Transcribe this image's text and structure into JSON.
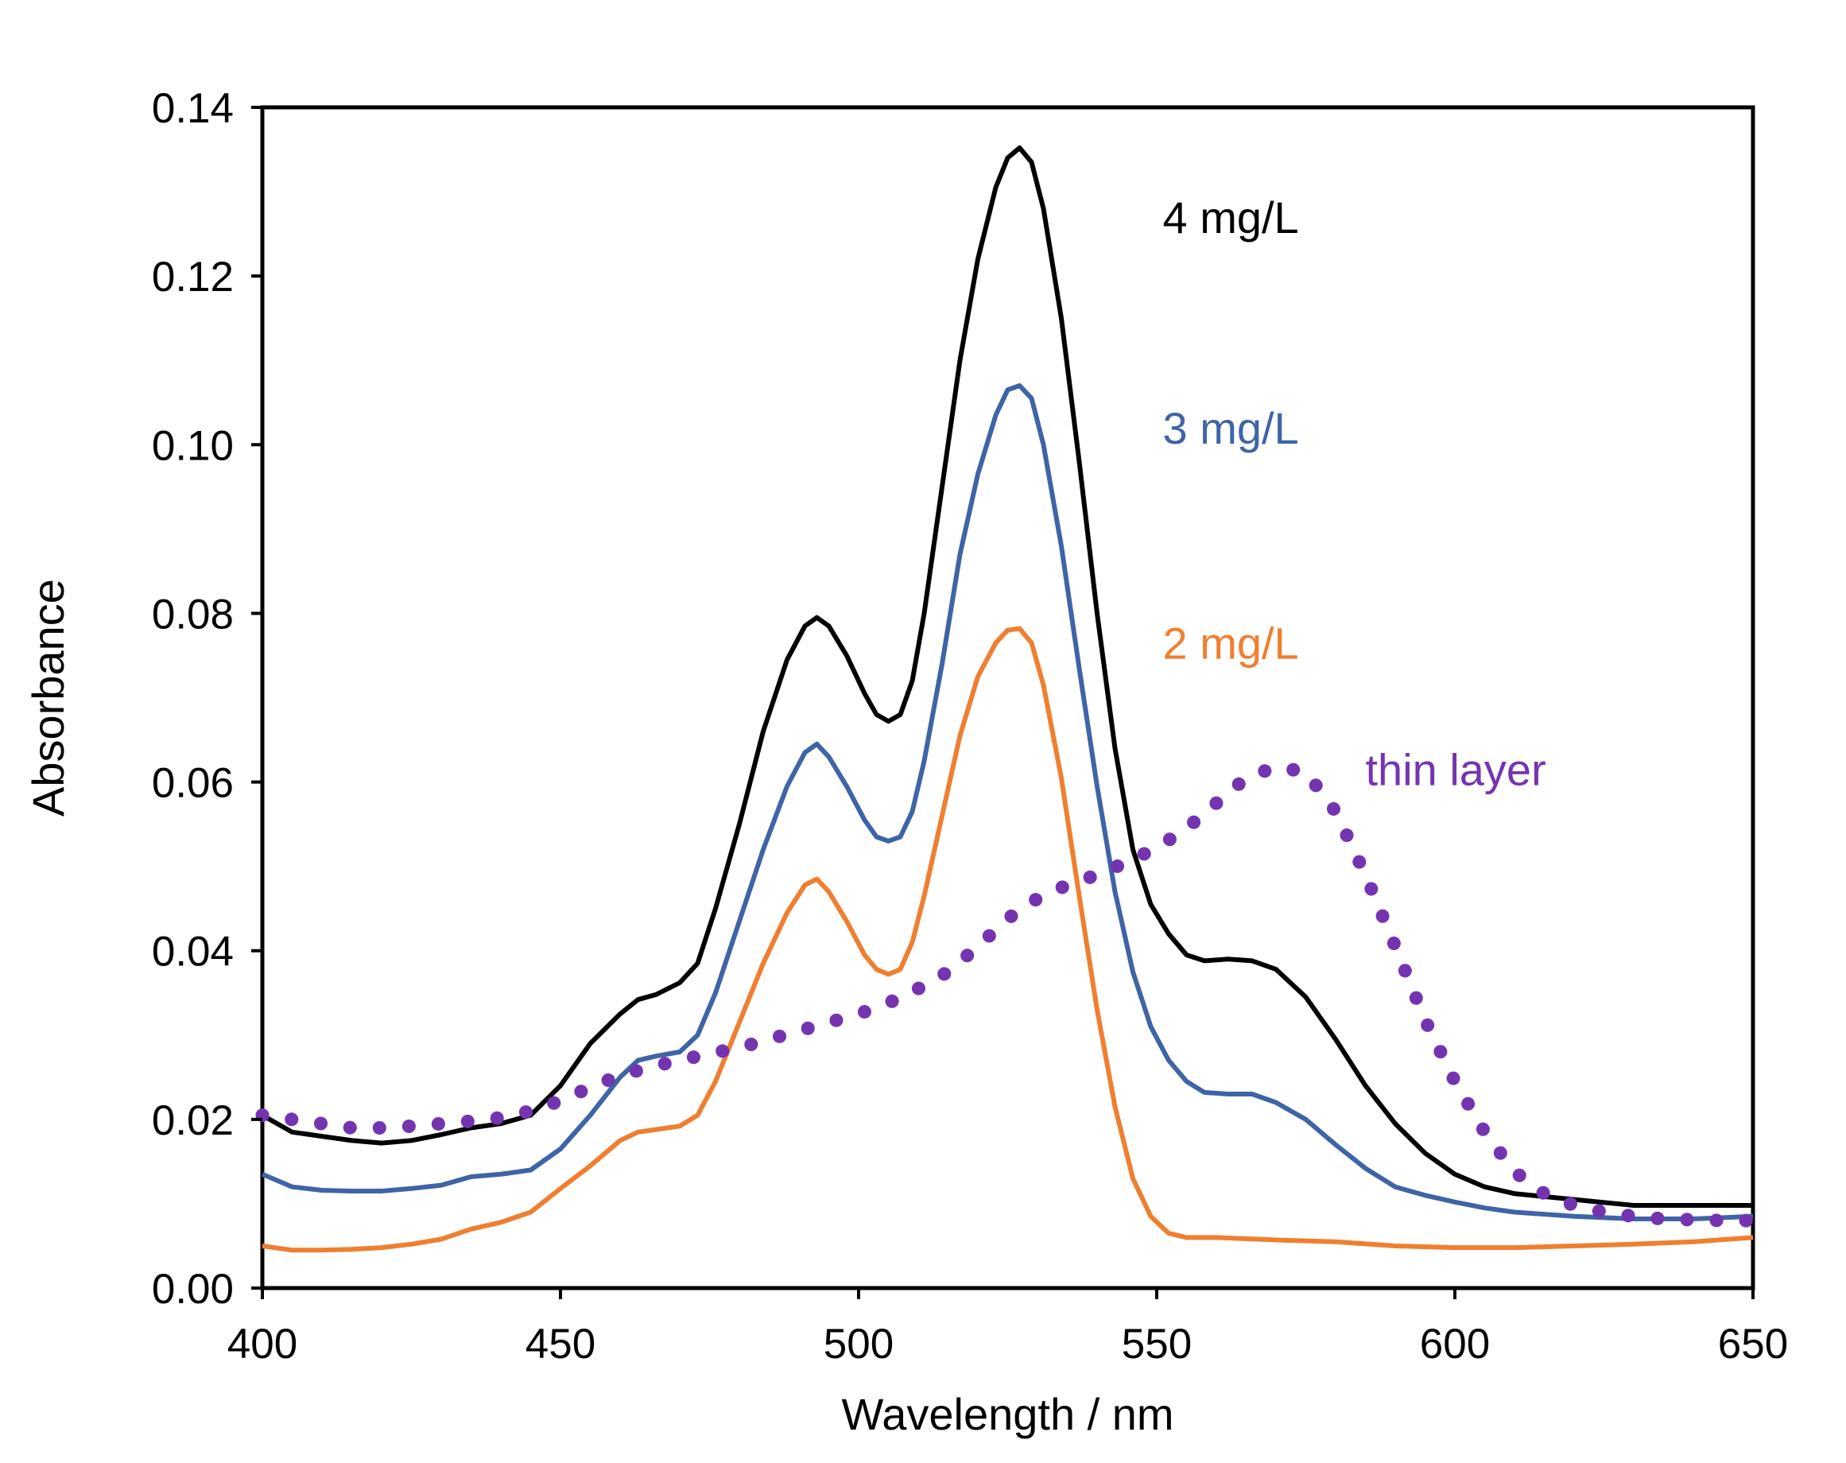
{
  "chart_data": {
    "type": "line",
    "title": "",
    "xlabel": "Wavelength / nm",
    "ylabel": "Absorbance",
    "xlim": [
      400,
      650
    ],
    "ylim": [
      0,
      0.14
    ],
    "grid": false,
    "legend": "inline labels",
    "xticks": [
      {
        "value": 400,
        "label": "400"
      },
      {
        "value": 450,
        "label": "450"
      },
      {
        "value": 500,
        "label": "500"
      },
      {
        "value": 550,
        "label": "550"
      },
      {
        "value": 600,
        "label": "600"
      },
      {
        "value": 650,
        "label": "650"
      }
    ],
    "yticks": [
      {
        "value": 0.0,
        "label": "0.00"
      },
      {
        "value": 0.02,
        "label": "0.02"
      },
      {
        "value": 0.04,
        "label": "0.04"
      },
      {
        "value": 0.06,
        "label": "0.06"
      },
      {
        "value": 0.08,
        "label": "0.08"
      },
      {
        "value": 0.1,
        "label": "0.10"
      },
      {
        "value": 0.12,
        "label": "0.12"
      },
      {
        "value": 0.14,
        "label": "0.14"
      }
    ],
    "series": [
      {
        "name": "4 mg/L",
        "color": "#000000",
        "style": "solid",
        "label_anchor": [
          551,
          0.127
        ],
        "points": [
          [
            400,
            0.0205
          ],
          [
            405,
            0.0185
          ],
          [
            410,
            0.018
          ],
          [
            415,
            0.0175
          ],
          [
            420,
            0.0172
          ],
          [
            425,
            0.0175
          ],
          [
            430,
            0.0182
          ],
          [
            435,
            0.019
          ],
          [
            440,
            0.0195
          ],
          [
            445,
            0.0205
          ],
          [
            450,
            0.024
          ],
          [
            455,
            0.029
          ],
          [
            460,
            0.0325
          ],
          [
            463,
            0.0342
          ],
          [
            466,
            0.0348
          ],
          [
            470,
            0.0362
          ],
          [
            473,
            0.0385
          ],
          [
            476,
            0.045
          ],
          [
            480,
            0.055
          ],
          [
            484,
            0.066
          ],
          [
            488,
            0.0745
          ],
          [
            491,
            0.0785
          ],
          [
            493,
            0.0795
          ],
          [
            495,
            0.0785
          ],
          [
            498,
            0.075
          ],
          [
            501,
            0.0705
          ],
          [
            503,
            0.068
          ],
          [
            505,
            0.0672
          ],
          [
            507,
            0.068
          ],
          [
            509,
            0.072
          ],
          [
            511,
            0.08
          ],
          [
            514,
            0.095
          ],
          [
            517,
            0.11
          ],
          [
            520,
            0.122
          ],
          [
            523,
            0.1305
          ],
          [
            525,
            0.134
          ],
          [
            527,
            0.1352
          ],
          [
            529,
            0.1335
          ],
          [
            531,
            0.128
          ],
          [
            534,
            0.115
          ],
          [
            537,
            0.098
          ],
          [
            540,
            0.08
          ],
          [
            543,
            0.064
          ],
          [
            546,
            0.052
          ],
          [
            549,
            0.0455
          ],
          [
            552,
            0.042
          ],
          [
            555,
            0.0395
          ],
          [
            558,
            0.0388
          ],
          [
            562,
            0.039
          ],
          [
            566,
            0.0388
          ],
          [
            570,
            0.0378
          ],
          [
            575,
            0.0345
          ],
          [
            580,
            0.0295
          ],
          [
            585,
            0.024
          ],
          [
            590,
            0.0195
          ],
          [
            595,
            0.016
          ],
          [
            600,
            0.0135
          ],
          [
            605,
            0.012
          ],
          [
            610,
            0.0112
          ],
          [
            620,
            0.0105
          ],
          [
            630,
            0.0098
          ],
          [
            640,
            0.0098
          ],
          [
            650,
            0.0098
          ]
        ]
      },
      {
        "name": "3 mg/L",
        "color": "#3f64a6",
        "style": "solid",
        "label_anchor": [
          551,
          0.102
        ],
        "points": [
          [
            400,
            0.0135
          ],
          [
            405,
            0.012
          ],
          [
            410,
            0.0116
          ],
          [
            415,
            0.0115
          ],
          [
            420,
            0.0115
          ],
          [
            425,
            0.0118
          ],
          [
            430,
            0.0122
          ],
          [
            435,
            0.0132
          ],
          [
            440,
            0.0135
          ],
          [
            445,
            0.014
          ],
          [
            450,
            0.0165
          ],
          [
            455,
            0.0205
          ],
          [
            460,
            0.025
          ],
          [
            463,
            0.027
          ],
          [
            466,
            0.0275
          ],
          [
            470,
            0.028
          ],
          [
            473,
            0.03
          ],
          [
            476,
            0.035
          ],
          [
            480,
            0.0435
          ],
          [
            484,
            0.052
          ],
          [
            488,
            0.0595
          ],
          [
            491,
            0.0635
          ],
          [
            493,
            0.0645
          ],
          [
            495,
            0.063
          ],
          [
            498,
            0.0595
          ],
          [
            501,
            0.0555
          ],
          [
            503,
            0.0535
          ],
          [
            505,
            0.053
          ],
          [
            507,
            0.0535
          ],
          [
            509,
            0.0565
          ],
          [
            511,
            0.0625
          ],
          [
            514,
            0.074
          ],
          [
            517,
            0.087
          ],
          [
            520,
            0.0965
          ],
          [
            523,
            0.1035
          ],
          [
            525,
            0.1065
          ],
          [
            527,
            0.107
          ],
          [
            529,
            0.1055
          ],
          [
            531,
            0.1
          ],
          [
            534,
            0.088
          ],
          [
            537,
            0.0735
          ],
          [
            540,
            0.0595
          ],
          [
            543,
            0.047
          ],
          [
            546,
            0.0375
          ],
          [
            549,
            0.031
          ],
          [
            552,
            0.027
          ],
          [
            555,
            0.0245
          ],
          [
            558,
            0.0232
          ],
          [
            562,
            0.023
          ],
          [
            566,
            0.023
          ],
          [
            570,
            0.022
          ],
          [
            575,
            0.02
          ],
          [
            580,
            0.017
          ],
          [
            585,
            0.0142
          ],
          [
            590,
            0.012
          ],
          [
            595,
            0.011
          ],
          [
            600,
            0.0102
          ],
          [
            605,
            0.0095
          ],
          [
            610,
            0.009
          ],
          [
            620,
            0.0085
          ],
          [
            630,
            0.0082
          ],
          [
            640,
            0.0082
          ],
          [
            650,
            0.0085
          ]
        ]
      },
      {
        "name": "2 mg/L",
        "color": "#ef7f30",
        "style": "solid",
        "label_anchor": [
          551,
          0.0765
        ],
        "points": [
          [
            400,
            0.005
          ],
          [
            405,
            0.0045
          ],
          [
            410,
            0.0045
          ],
          [
            415,
            0.0046
          ],
          [
            420,
            0.0048
          ],
          [
            425,
            0.0052
          ],
          [
            430,
            0.0058
          ],
          [
            435,
            0.007
          ],
          [
            440,
            0.0078
          ],
          [
            445,
            0.009
          ],
          [
            450,
            0.0118
          ],
          [
            455,
            0.0145
          ],
          [
            460,
            0.0175
          ],
          [
            463,
            0.0185
          ],
          [
            466,
            0.0188
          ],
          [
            470,
            0.0192
          ],
          [
            473,
            0.0205
          ],
          [
            476,
            0.0245
          ],
          [
            480,
            0.0315
          ],
          [
            484,
            0.0385
          ],
          [
            488,
            0.0445
          ],
          [
            491,
            0.0478
          ],
          [
            493,
            0.0485
          ],
          [
            495,
            0.047
          ],
          [
            498,
            0.0435
          ],
          [
            501,
            0.0395
          ],
          [
            503,
            0.0378
          ],
          [
            505,
            0.0372
          ],
          [
            507,
            0.0378
          ],
          [
            509,
            0.041
          ],
          [
            511,
            0.0465
          ],
          [
            514,
            0.056
          ],
          [
            517,
            0.0655
          ],
          [
            520,
            0.0725
          ],
          [
            523,
            0.0765
          ],
          [
            525,
            0.078
          ],
          [
            527,
            0.0782
          ],
          [
            529,
            0.0765
          ],
          [
            531,
            0.0715
          ],
          [
            534,
            0.0605
          ],
          [
            537,
            0.0465
          ],
          [
            540,
            0.033
          ],
          [
            543,
            0.0215
          ],
          [
            546,
            0.013
          ],
          [
            549,
            0.0085
          ],
          [
            552,
            0.0065
          ],
          [
            555,
            0.006
          ],
          [
            560,
            0.006
          ],
          [
            570,
            0.0057
          ],
          [
            580,
            0.0055
          ],
          [
            590,
            0.005
          ],
          [
            600,
            0.0048
          ],
          [
            610,
            0.0048
          ],
          [
            620,
            0.005
          ],
          [
            630,
            0.0052
          ],
          [
            640,
            0.0055
          ],
          [
            650,
            0.006
          ]
        ]
      },
      {
        "name": "thin layer",
        "color": "#7434b0",
        "style": "dotted",
        "label_anchor": [
          585,
          0.0615
        ],
        "points": [
          [
            400,
            0.0205
          ],
          [
            405,
            0.02
          ],
          [
            410,
            0.0195
          ],
          [
            415,
            0.019
          ],
          [
            420,
            0.019
          ],
          [
            425,
            0.0192
          ],
          [
            430,
            0.0195
          ],
          [
            435,
            0.0198
          ],
          [
            440,
            0.0202
          ],
          [
            445,
            0.021
          ],
          [
            450,
            0.0222
          ],
          [
            455,
            0.0238
          ],
          [
            460,
            0.0252
          ],
          [
            465,
            0.0262
          ],
          [
            470,
            0.027
          ],
          [
            475,
            0.0278
          ],
          [
            480,
            0.0285
          ],
          [
            485,
            0.0295
          ],
          [
            490,
            0.0305
          ],
          [
            495,
            0.0315
          ],
          [
            500,
            0.0325
          ],
          [
            505,
            0.0338
          ],
          [
            510,
            0.0355
          ],
          [
            515,
            0.0375
          ],
          [
            520,
            0.0405
          ],
          [
            525,
            0.0438
          ],
          [
            530,
            0.0462
          ],
          [
            535,
            0.0478
          ],
          [
            540,
            0.049
          ],
          [
            545,
            0.0505
          ],
          [
            550,
            0.0522
          ],
          [
            555,
            0.0545
          ],
          [
            560,
            0.0575
          ],
          [
            565,
            0.0605
          ],
          [
            570,
            0.0618
          ],
          [
            575,
            0.0612
          ],
          [
            580,
            0.0565
          ],
          [
            585,
            0.049
          ],
          [
            590,
            0.0405
          ],
          [
            595,
            0.0318
          ],
          [
            600,
            0.0245
          ],
          [
            605,
            0.0185
          ],
          [
            610,
            0.0138
          ],
          [
            615,
            0.0112
          ],
          [
            620,
            0.0098
          ],
          [
            625,
            0.009
          ],
          [
            630,
            0.0085
          ],
          [
            635,
            0.0082
          ],
          [
            640,
            0.0081
          ],
          [
            645,
            0.008
          ],
          [
            650,
            0.008
          ]
        ]
      }
    ]
  }
}
